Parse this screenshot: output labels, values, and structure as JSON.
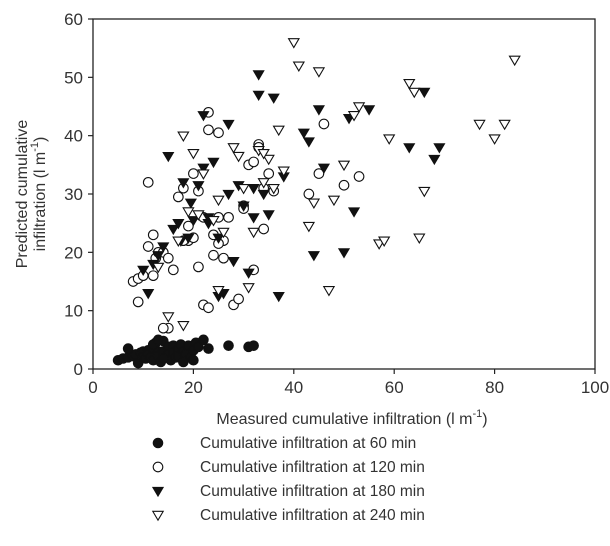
{
  "chart_data": {
    "type": "scatter",
    "xlabel": "Measured cumulative infiltration (l m",
    "xlabel_sup": "-1",
    "xlabel_end": ")",
    "ylabel_line1": "Predicted cumulative",
    "ylabel_line2": "infiltration (l m",
    "ylabel_sup": "-1",
    "ylabel_end": ")",
    "xlim": [
      0,
      100
    ],
    "ylim": [
      0,
      60
    ],
    "xticks": [
      "0",
      "20",
      "40",
      "60",
      "80",
      "100"
    ],
    "yticks": [
      "0",
      "10",
      "20",
      "30",
      "40",
      "50",
      "60"
    ],
    "grid": false,
    "legend_position": "bottom",
    "series": [
      {
        "name": "Cumulative infiltration at  60  min",
        "marker": "filled-circle",
        "x": [
          5,
          6,
          7,
          8,
          8.5,
          9,
          9.5,
          10,
          10,
          10.5,
          11,
          11,
          11.5,
          12,
          12,
          12.5,
          13,
          13,
          13.5,
          14,
          14,
          14.5,
          15,
          15,
          15.5,
          16,
          16,
          16.5,
          17,
          17,
          17.5,
          18,
          18.5,
          19,
          19.5,
          20,
          20.5,
          21,
          22,
          23,
          27,
          31,
          32,
          7,
          12,
          13,
          14,
          18,
          20
        ],
        "y": [
          1.5,
          1.8,
          2.0,
          2.2,
          2.5,
          1.0,
          2.8,
          3.0,
          2.0,
          1.8,
          3.2,
          2.5,
          2.0,
          3.5,
          1.5,
          4.5,
          3.0,
          2.2,
          1.2,
          4.8,
          3.0,
          2.0,
          3.8,
          2.5,
          1.5,
          4.0,
          2.8,
          2.0,
          3.5,
          2.2,
          4.2,
          3.0,
          2.5,
          4.0,
          2.0,
          3.2,
          4.5,
          3.8,
          5.0,
          3.5,
          4.0,
          3.8,
          4.0,
          3.5,
          4.2,
          5.0,
          1.8,
          1.2,
          1.5
        ]
      },
      {
        "name": "Cumulative infiltration at 120 min",
        "marker": "open-circle",
        "x": [
          8,
          9,
          10,
          11,
          11,
          12,
          12.5,
          13,
          14,
          15,
          16,
          17,
          18,
          19,
          19,
          20,
          21,
          21,
          22,
          22,
          23,
          23,
          24,
          24,
          25,
          25,
          26,
          26,
          27,
          28,
          29,
          30,
          30,
          31,
          32,
          32,
          33,
          33,
          34,
          34,
          35,
          36,
          43,
          45,
          46,
          50,
          53,
          25,
          14,
          15,
          18,
          12,
          9,
          20,
          23
        ],
        "y": [
          15,
          15.5,
          16,
          32,
          21,
          23,
          19,
          20,
          20,
          7,
          17,
          29.5,
          31,
          22,
          24.5,
          22.5,
          17.5,
          30.5,
          11,
          26,
          41,
          44,
          23,
          19.5,
          40.5,
          26,
          22,
          19,
          26,
          11,
          12,
          28,
          27.5,
          35,
          17,
          35.5,
          38.5,
          38,
          31,
          24,
          33.5,
          30.5,
          30,
          33.5,
          42,
          31.5,
          33,
          21.5,
          7,
          19,
          22,
          16,
          11.5,
          33.5,
          10.5
        ]
      },
      {
        "name": "Cumulative infiltration at 180 min",
        "marker": "filled-triangle-down",
        "x": [
          10,
          11,
          12,
          13,
          14,
          15,
          16,
          17,
          17.5,
          18,
          19,
          19.5,
          20,
          21,
          22,
          22,
          23,
          23,
          24,
          25,
          25,
          26,
          27,
          27,
          28,
          29,
          30,
          31,
          32,
          32,
          33,
          33,
          34,
          35,
          36,
          37,
          38,
          42,
          43,
          44,
          45,
          46,
          50,
          51,
          52,
          55,
          63,
          66,
          68,
          69
        ],
        "y": [
          17,
          13,
          18,
          19.5,
          21,
          36.5,
          24,
          25,
          22,
          32,
          22.5,
          28.5,
          25.5,
          31.5,
          43.5,
          34.5,
          25,
          26,
          35.5,
          12.5,
          22.5,
          13,
          42,
          30,
          18.5,
          31.5,
          28,
          16.5,
          26,
          31,
          50.5,
          47,
          30,
          26.5,
          46.5,
          12.5,
          33,
          40.5,
          39,
          19.5,
          44.5,
          34.5,
          20,
          43,
          27,
          44.5,
          38,
          47.5,
          36,
          38
        ]
      },
      {
        "name": "Cumulative infiltration at 240 min",
        "marker": "open-triangle-down",
        "x": [
          13,
          15,
          17,
          18,
          19,
          20,
          21,
          22,
          24,
          25,
          26,
          28,
          29,
          30,
          31,
          32,
          33,
          34,
          35,
          36,
          37,
          38,
          40,
          41,
          43,
          44,
          45,
          47,
          48,
          50,
          52,
          53,
          57,
          58,
          59,
          63,
          64,
          65,
          66,
          77,
          80,
          82,
          84,
          25,
          34,
          18
        ],
        "y": [
          17.5,
          9,
          22,
          40,
          27,
          37,
          26.5,
          33.5,
          25.5,
          13.5,
          23.5,
          38,
          36.5,
          31,
          14,
          23.5,
          37.5,
          32,
          36,
          31,
          41,
          34,
          56,
          52,
          24.5,
          28.5,
          51,
          13.5,
          29,
          35,
          43.5,
          45,
          21.5,
          22,
          39.5,
          49,
          47.5,
          22.5,
          30.5,
          42,
          39.5,
          42,
          53,
          29,
          37,
          7.5
        ]
      }
    ]
  }
}
